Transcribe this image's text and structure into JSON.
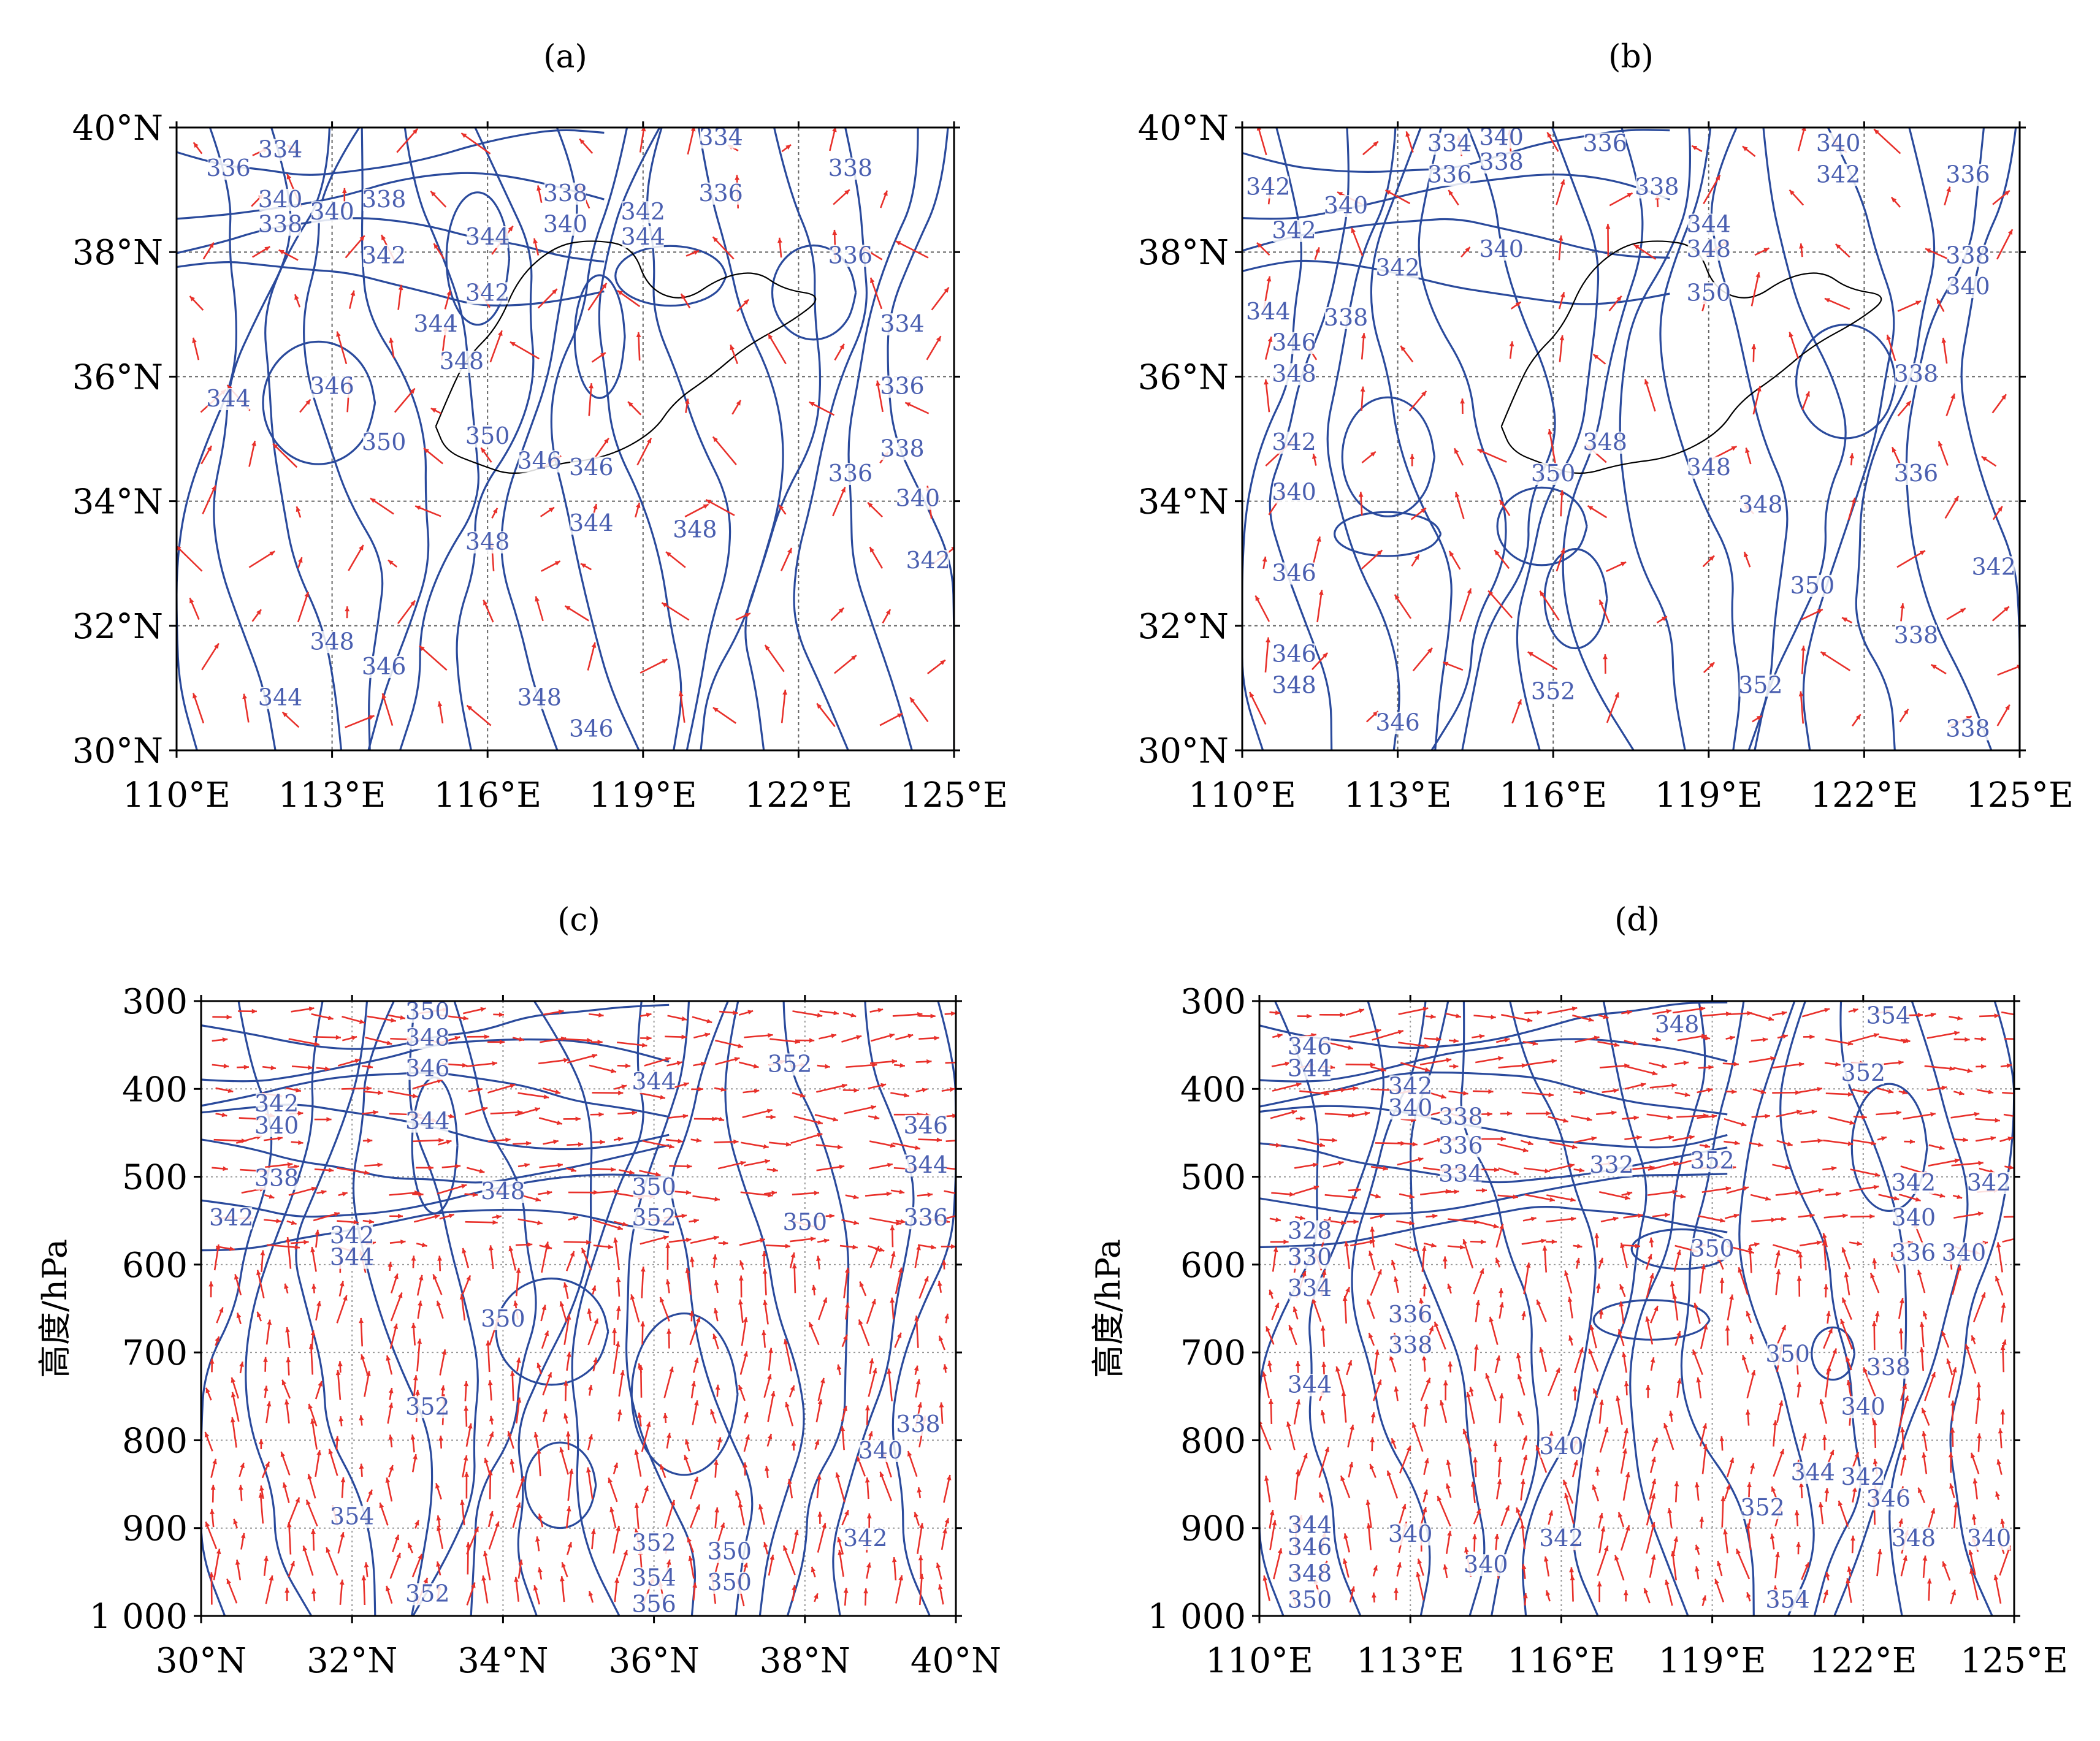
{
  "colors": {
    "contour": "#2a4a9c",
    "contour_label": "#4a5fb0",
    "wind": "#e8302a",
    "grid": "#555555",
    "axes": "#000000",
    "coast": "#000000"
  },
  "panel_labels": {
    "a": "(a)",
    "b": "(b)",
    "c": "(c)",
    "d": "(d)"
  },
  "vertical_ylabel": "高度/hPa",
  "chart_data": [
    {
      "id": "a",
      "type": "contour",
      "title": "(a)",
      "xlim": [
        110,
        125
      ],
      "ylim": [
        30,
        40
      ],
      "x_ticks": [
        110,
        113,
        116,
        119,
        122,
        125
      ],
      "x_tick_labels": [
        "110°E",
        "113°E",
        "116°E",
        "119°E",
        "122°E",
        "125°E"
      ],
      "y_ticks": [
        30,
        32,
        34,
        36,
        38,
        40
      ],
      "y_tick_labels": [
        "30°N",
        "32°N",
        "34°N",
        "36°N",
        "38°N",
        "40°N"
      ],
      "grid": true,
      "contour_labels": [
        {
          "x": 112.0,
          "y": 39.6,
          "v": "334"
        },
        {
          "x": 111.0,
          "y": 39.3,
          "v": "336"
        },
        {
          "x": 112.0,
          "y": 38.8,
          "v": "340"
        },
        {
          "x": 112.0,
          "y": 38.4,
          "v": "338"
        },
        {
          "x": 113.0,
          "y": 38.6,
          "v": "340"
        },
        {
          "x": 114.0,
          "y": 38.8,
          "v": "338"
        },
        {
          "x": 114.0,
          "y": 37.9,
          "v": "342"
        },
        {
          "x": 116.0,
          "y": 38.2,
          "v": "344"
        },
        {
          "x": 116.0,
          "y": 37.3,
          "v": "342"
        },
        {
          "x": 115.0,
          "y": 36.8,
          "v": "344"
        },
        {
          "x": 115.5,
          "y": 36.2,
          "v": "348"
        },
        {
          "x": 113.0,
          "y": 35.8,
          "v": "346"
        },
        {
          "x": 111.0,
          "y": 35.6,
          "v": "344"
        },
        {
          "x": 114.0,
          "y": 34.9,
          "v": "350"
        },
        {
          "x": 116.0,
          "y": 35.0,
          "v": "350"
        },
        {
          "x": 117.0,
          "y": 34.6,
          "v": "346"
        },
        {
          "x": 118.0,
          "y": 34.5,
          "v": "346"
        },
        {
          "x": 117.5,
          "y": 38.9,
          "v": "338"
        },
        {
          "x": 117.5,
          "y": 38.4,
          "v": "340"
        },
        {
          "x": 119.0,
          "y": 38.6,
          "v": "342"
        },
        {
          "x": 119.0,
          "y": 38.2,
          "v": "344"
        },
        {
          "x": 120.5,
          "y": 39.8,
          "v": "334"
        },
        {
          "x": 120.5,
          "y": 38.9,
          "v": "336"
        },
        {
          "x": 123.0,
          "y": 39.3,
          "v": "338"
        },
        {
          "x": 123.0,
          "y": 37.9,
          "v": "336"
        },
        {
          "x": 124.0,
          "y": 36.8,
          "v": "334"
        },
        {
          "x": 124.0,
          "y": 35.8,
          "v": "336"
        },
        {
          "x": 124.0,
          "y": 34.8,
          "v": "338"
        },
        {
          "x": 123.0,
          "y": 34.4,
          "v": "336"
        },
        {
          "x": 124.3,
          "y": 34.0,
          "v": "340"
        },
        {
          "x": 124.5,
          "y": 33.0,
          "v": "342"
        },
        {
          "x": 116.0,
          "y": 33.3,
          "v": "348"
        },
        {
          "x": 118.0,
          "y": 33.6,
          "v": "344"
        },
        {
          "x": 120.0,
          "y": 33.5,
          "v": "348"
        },
        {
          "x": 113.0,
          "y": 31.7,
          "v": "348"
        },
        {
          "x": 114.0,
          "y": 31.3,
          "v": "346"
        },
        {
          "x": 112.0,
          "y": 30.8,
          "v": "344"
        },
        {
          "x": 117.0,
          "y": 30.8,
          "v": "348"
        },
        {
          "x": 118.0,
          "y": 30.3,
          "v": "346"
        }
      ]
    },
    {
      "id": "b",
      "type": "contour",
      "title": "(b)",
      "xlim": [
        110,
        125
      ],
      "ylim": [
        30,
        40
      ],
      "x_ticks": [
        110,
        113,
        116,
        119,
        122,
        125
      ],
      "x_tick_labels": [
        "110°E",
        "113°E",
        "116°E",
        "119°E",
        "122°E",
        "125°E"
      ],
      "y_ticks": [
        30,
        32,
        34,
        36,
        38,
        40
      ],
      "y_tick_labels": [
        "30°N",
        "32°N",
        "34°N",
        "36°N",
        "38°N",
        "40°N"
      ],
      "grid": true,
      "contour_labels": [
        {
          "x": 114.0,
          "y": 39.7,
          "v": "334"
        },
        {
          "x": 115.0,
          "y": 39.8,
          "v": "340"
        },
        {
          "x": 114.0,
          "y": 39.2,
          "v": "336"
        },
        {
          "x": 115.0,
          "y": 39.4,
          "v": "338"
        },
        {
          "x": 117.0,
          "y": 39.7,
          "v": "336"
        },
        {
          "x": 110.5,
          "y": 39.0,
          "v": "342"
        },
        {
          "x": 112.0,
          "y": 38.7,
          "v": "340"
        },
        {
          "x": 111.0,
          "y": 38.3,
          "v": "342"
        },
        {
          "x": 113.0,
          "y": 37.7,
          "v": "342"
        },
        {
          "x": 110.5,
          "y": 37.0,
          "v": "344"
        },
        {
          "x": 112.0,
          "y": 36.9,
          "v": "338"
        },
        {
          "x": 111.0,
          "y": 36.5,
          "v": "346"
        },
        {
          "x": 111.0,
          "y": 36.0,
          "v": "348"
        },
        {
          "x": 111.0,
          "y": 34.9,
          "v": "342"
        },
        {
          "x": 111.0,
          "y": 34.1,
          "v": "340"
        },
        {
          "x": 111.0,
          "y": 32.8,
          "v": "346"
        },
        {
          "x": 111.0,
          "y": 31.5,
          "v": "346"
        },
        {
          "x": 111.0,
          "y": 31.0,
          "v": "348"
        },
        {
          "x": 113.0,
          "y": 30.4,
          "v": "346"
        },
        {
          "x": 118.0,
          "y": 39.0,
          "v": "338"
        },
        {
          "x": 115.0,
          "y": 38.0,
          "v": "340"
        },
        {
          "x": 119.0,
          "y": 38.4,
          "v": "344"
        },
        {
          "x": 119.0,
          "y": 38.0,
          "v": "348"
        },
        {
          "x": 119.0,
          "y": 37.3,
          "v": "350"
        },
        {
          "x": 121.5,
          "y": 39.7,
          "v": "340"
        },
        {
          "x": 121.5,
          "y": 39.2,
          "v": "342"
        },
        {
          "x": 124.0,
          "y": 39.2,
          "v": "336"
        },
        {
          "x": 124.0,
          "y": 37.9,
          "v": "338"
        },
        {
          "x": 124.0,
          "y": 37.4,
          "v": "340"
        },
        {
          "x": 123.0,
          "y": 36.0,
          "v": "338"
        },
        {
          "x": 117.0,
          "y": 34.9,
          "v": "348"
        },
        {
          "x": 116.0,
          "y": 34.4,
          "v": "350"
        },
        {
          "x": 119.0,
          "y": 34.5,
          "v": "348"
        },
        {
          "x": 120.0,
          "y": 33.9,
          "v": "348"
        },
        {
          "x": 123.0,
          "y": 34.4,
          "v": "336"
        },
        {
          "x": 124.5,
          "y": 32.9,
          "v": "342"
        },
        {
          "x": 121.0,
          "y": 32.6,
          "v": "350"
        },
        {
          "x": 123.0,
          "y": 31.8,
          "v": "338"
        },
        {
          "x": 116.0,
          "y": 30.9,
          "v": "352"
        },
        {
          "x": 120.0,
          "y": 31.0,
          "v": "352"
        },
        {
          "x": 124.0,
          "y": 30.3,
          "v": "338"
        }
      ]
    },
    {
      "id": "c",
      "type": "contour",
      "title": "(c)",
      "xlim": [
        30,
        40
      ],
      "ylim": [
        1000,
        300
      ],
      "x_ticks": [
        30,
        32,
        34,
        36,
        38,
        40
      ],
      "x_tick_labels": [
        "30°N",
        "32°N",
        "34°N",
        "36°N",
        "38°N",
        "40°N"
      ],
      "y_ticks": [
        300,
        400,
        500,
        600,
        700,
        800,
        900,
        1000
      ],
      "y_tick_labels": [
        "300",
        "400",
        "500",
        "600",
        "700",
        "800",
        "900",
        "1 000"
      ],
      "ylabel": "高度/hPa",
      "grid": true,
      "contour_labels": [
        {
          "x": 33.0,
          "y": 315,
          "v": "350"
        },
        {
          "x": 33.0,
          "y": 345,
          "v": "348"
        },
        {
          "x": 33.0,
          "y": 380,
          "v": "346"
        },
        {
          "x": 36.0,
          "y": 395,
          "v": "344"
        },
        {
          "x": 37.8,
          "y": 375,
          "v": "352"
        },
        {
          "x": 31.0,
          "y": 420,
          "v": "342"
        },
        {
          "x": 31.0,
          "y": 445,
          "v": "340"
        },
        {
          "x": 33.0,
          "y": 440,
          "v": "344"
        },
        {
          "x": 31.0,
          "y": 505,
          "v": "338"
        },
        {
          "x": 30.4,
          "y": 550,
          "v": "342"
        },
        {
          "x": 32.0,
          "y": 570,
          "v": "342"
        },
        {
          "x": 32.0,
          "y": 595,
          "v": "344"
        },
        {
          "x": 34.0,
          "y": 520,
          "v": "348"
        },
        {
          "x": 36.0,
          "y": 515,
          "v": "350"
        },
        {
          "x": 36.0,
          "y": 550,
          "v": "352"
        },
        {
          "x": 38.0,
          "y": 555,
          "v": "350"
        },
        {
          "x": 39.6,
          "y": 445,
          "v": "346"
        },
        {
          "x": 39.6,
          "y": 490,
          "v": "344"
        },
        {
          "x": 39.6,
          "y": 550,
          "v": "336"
        },
        {
          "x": 34.0,
          "y": 665,
          "v": "350"
        },
        {
          "x": 33.0,
          "y": 765,
          "v": "352"
        },
        {
          "x": 39.5,
          "y": 785,
          "v": "338"
        },
        {
          "x": 39.0,
          "y": 815,
          "v": "340"
        },
        {
          "x": 32.0,
          "y": 890,
          "v": "354"
        },
        {
          "x": 38.8,
          "y": 915,
          "v": "342"
        },
        {
          "x": 36.0,
          "y": 920,
          "v": "352"
        },
        {
          "x": 37.0,
          "y": 930,
          "v": "350"
        },
        {
          "x": 37.0,
          "y": 965,
          "v": "350"
        },
        {
          "x": 36.0,
          "y": 960,
          "v": "354"
        },
        {
          "x": 36.0,
          "y": 990,
          "v": "356"
        },
        {
          "x": 33.0,
          "y": 978,
          "v": "352"
        }
      ]
    },
    {
      "id": "d",
      "type": "contour",
      "title": "(d)",
      "xlim": [
        110,
        125
      ],
      "ylim": [
        1000,
        300
      ],
      "x_ticks": [
        110,
        113,
        116,
        119,
        122,
        125
      ],
      "x_tick_labels": [
        "110°E",
        "113°E",
        "116°E",
        "119°E",
        "122°E",
        "125°E"
      ],
      "y_ticks": [
        300,
        400,
        500,
        600,
        700,
        800,
        900,
        1000
      ],
      "y_tick_labels": [
        "300",
        "400",
        "500",
        "600",
        "700",
        "800",
        "900",
        "1 000"
      ],
      "ylabel": "高度/hPa",
      "grid": true,
      "contour_labels": [
        {
          "x": 111.0,
          "y": 355,
          "v": "346"
        },
        {
          "x": 111.0,
          "y": 380,
          "v": "344"
        },
        {
          "x": 113.0,
          "y": 400,
          "v": "342"
        },
        {
          "x": 113.0,
          "y": 425,
          "v": "340"
        },
        {
          "x": 114.0,
          "y": 435,
          "v": "338"
        },
        {
          "x": 114.0,
          "y": 468,
          "v": "336"
        },
        {
          "x": 114.0,
          "y": 500,
          "v": "334"
        },
        {
          "x": 117.0,
          "y": 490,
          "v": "332"
        },
        {
          "x": 118.3,
          "y": 330,
          "v": "348"
        },
        {
          "x": 122.5,
          "y": 320,
          "v": "354"
        },
        {
          "x": 122.0,
          "y": 385,
          "v": "352"
        },
        {
          "x": 119.0,
          "y": 485,
          "v": "352"
        },
        {
          "x": 119.0,
          "y": 585,
          "v": "350"
        },
        {
          "x": 123.0,
          "y": 510,
          "v": "342"
        },
        {
          "x": 124.5,
          "y": 510,
          "v": "342"
        },
        {
          "x": 123.0,
          "y": 550,
          "v": "340"
        },
        {
          "x": 123.0,
          "y": 590,
          "v": "336"
        },
        {
          "x": 124.0,
          "y": 590,
          "v": "340"
        },
        {
          "x": 111.0,
          "y": 565,
          "v": "328"
        },
        {
          "x": 111.0,
          "y": 595,
          "v": "330"
        },
        {
          "x": 111.0,
          "y": 630,
          "v": "334"
        },
        {
          "x": 113.0,
          "y": 660,
          "v": "336"
        },
        {
          "x": 113.0,
          "y": 695,
          "v": "338"
        },
        {
          "x": 111.0,
          "y": 740,
          "v": "344"
        },
        {
          "x": 120.5,
          "y": 705,
          "v": "350"
        },
        {
          "x": 122.5,
          "y": 720,
          "v": "338"
        },
        {
          "x": 122.0,
          "y": 765,
          "v": "340"
        },
        {
          "x": 116.0,
          "y": 810,
          "v": "340"
        },
        {
          "x": 121.0,
          "y": 840,
          "v": "344"
        },
        {
          "x": 122.0,
          "y": 845,
          "v": "342"
        },
        {
          "x": 122.5,
          "y": 870,
          "v": "346"
        },
        {
          "x": 120.0,
          "y": 880,
          "v": "352"
        },
        {
          "x": 111.0,
          "y": 900,
          "v": "344"
        },
        {
          "x": 111.0,
          "y": 925,
          "v": "346"
        },
        {
          "x": 111.0,
          "y": 955,
          "v": "348"
        },
        {
          "x": 111.0,
          "y": 985,
          "v": "350"
        },
        {
          "x": 113.0,
          "y": 910,
          "v": "340"
        },
        {
          "x": 114.5,
          "y": 945,
          "v": "340"
        },
        {
          "x": 116.0,
          "y": 915,
          "v": "342"
        },
        {
          "x": 123.0,
          "y": 915,
          "v": "348"
        },
        {
          "x": 124.5,
          "y": 915,
          "v": "340"
        },
        {
          "x": 120.5,
          "y": 985,
          "v": "354"
        }
      ]
    }
  ]
}
